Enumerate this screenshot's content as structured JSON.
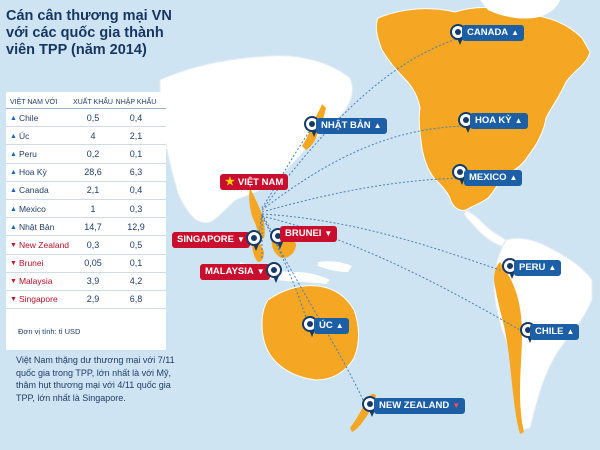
{
  "title": "Cán cân thương mại VN với các quốc gia thành viên TPP (năm 2014)",
  "colors": {
    "ocean": "#cfe4f3",
    "land_tpp": "#f5a623",
    "land_other": "#ffffff",
    "surplus": "#1c5fa5",
    "deficit": "#c8102e",
    "text": "#1f3d66"
  },
  "table": {
    "headers": [
      "VIỆT NAM VỚI",
      "XUẤT KHẨU",
      "NHẬP KHẨU"
    ],
    "rows": [
      {
        "trend": "up",
        "country": "Chile",
        "export": "0,5",
        "import": "0,4"
      },
      {
        "trend": "up",
        "country": "Úc",
        "export": "4",
        "import": "2,1"
      },
      {
        "trend": "up",
        "country": "Peru",
        "export": "0,2",
        "import": "0,1"
      },
      {
        "trend": "up",
        "country": "Hoa Kỳ",
        "export": "28,6",
        "import": "6,3"
      },
      {
        "trend": "up",
        "country": "Canada",
        "export": "2,1",
        "import": "0,4"
      },
      {
        "trend": "up",
        "country": "Mexico",
        "export": "1",
        "import": "0,3"
      },
      {
        "trend": "up",
        "country": "Nhật Bản",
        "export": "14,7",
        "import": "12,9"
      },
      {
        "trend": "down",
        "country": "New Zealand",
        "export": "0,3",
        "import": "0,5"
      },
      {
        "trend": "down",
        "country": "Brunei",
        "export": "0,05",
        "import": "0,1"
      },
      {
        "trend": "down",
        "country": "Malaysia",
        "export": "3,9",
        "import": "4,2"
      },
      {
        "trend": "down",
        "country": "Singapore",
        "export": "2,9",
        "import": "6,8"
      }
    ],
    "unit": "Đơn vị tính: tỉ USD"
  },
  "note": "Việt Nam thặng dư thương mại với 7/11 quốc gia trong TPP, lớn nhất là với Mỹ, thâm hụt thương mại với 4/11 quốc gia TPP, lớn nhất là Singapore.",
  "labels": {
    "vietnam": "VIỆT NAM",
    "canada": "CANADA",
    "hoaky": "HOA KỲ",
    "mexico": "MEXICO",
    "peru": "PERU",
    "chile": "CHILE",
    "nhatban": "NHẬT BẢN",
    "brunei": "BRUNEI",
    "singapore": "SINGAPORE",
    "malaysia": "MALAYSIA",
    "uc": "ÚC",
    "newzealand": "NEW ZEALAND",
    "up_symbol": "▲",
    "down_symbol": "▼",
    "star_symbol": "★"
  }
}
